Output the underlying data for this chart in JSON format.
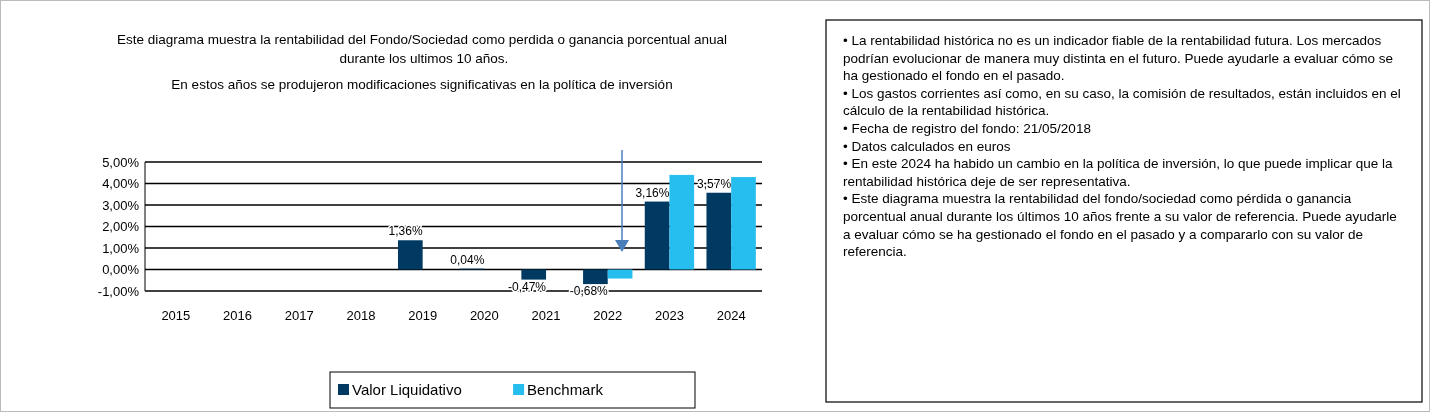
{
  "chart_data": {
    "type": "bar",
    "title": "Este diagrama  muestra la rentabilidad  del Fondo/Sociedad como perdida  o ganancia porcentual anual  durante los ultimos 10 años.",
    "subtitle": "En estos años se produjeron  modificaciones significativas en la política de inversión",
    "categories": [
      "2015",
      "2016",
      "2017",
      "2018",
      "2019",
      "2020",
      "2021",
      "2022",
      "2023",
      "2024"
    ],
    "series": [
      {
        "name": "Valor Liquidativo",
        "color": "#003a63",
        "values": [
          null,
          null,
          null,
          null,
          1.36,
          0.04,
          -0.47,
          -0.68,
          3.16,
          3.57
        ],
        "value_labels": [
          null,
          null,
          null,
          null,
          "1,36%",
          "0,04%",
          "-0,47%",
          "-0,68%",
          "3,16%",
          "3,57%"
        ]
      },
      {
        "name": "Benchmark",
        "color": "#26bdef",
        "values": [
          null,
          null,
          null,
          null,
          null,
          null,
          null,
          -0.42,
          4.4,
          4.3
        ]
      }
    ],
    "ylim": [
      -1,
      5
    ],
    "yticks": [
      {
        "value": -1,
        "label": "-1,00%"
      },
      {
        "value": 0,
        "label": "0,00%"
      },
      {
        "value": 1,
        "label": "1,00%"
      },
      {
        "value": 2,
        "label": "2,00%"
      },
      {
        "value": 3,
        "label": "3,00%"
      },
      {
        "value": 4,
        "label": "4,00%"
      },
      {
        "value": 5,
        "label": "5,00%"
      }
    ],
    "grid": "y",
    "legend": "bottom",
    "annotations": [
      "• La rentabilidad  histórica no es un indicador  fiable de la rentabilidad  futura. Los mercados podrían evolucionar de manera muy distinta en el futuro. Puede ayudarle a evaluar cómo se ha gestionado el fondo en el pasado.",
      "• Los gastos corrientes así como, en su caso, la comisión de resultados, están incluidos en el cálculo de la rentabilidad  histórica.",
      "• Fecha de registro del fondo: 21/05/2018",
      "• Datos calculados en euros",
      "• En este 2024 ha habido  un cambio en la política de inversión, lo que puede  implicar que  la rentabilidad histórica deje de ser representativa.",
      "• Este diagrama  muestra la rentabilidad  del fondo/sociedad como pérdida  o ganancia porcentual anual  durante los últimos  10 años frente a su  valor de referencia. Puede ayudarle a evaluar cómo se ha gestionado el fondo en el pasado y a compararlo con su valor de referencia."
    ]
  }
}
